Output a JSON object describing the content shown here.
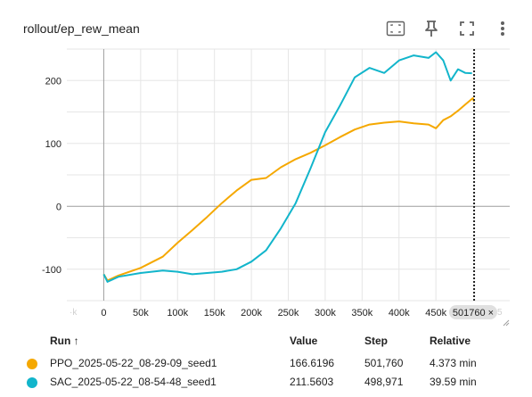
{
  "card": {
    "title": "rollout/ep_rew_mean"
  },
  "toolbar": {
    "icons": [
      "fit-domain-icon",
      "pin-icon",
      "fullscreen-icon",
      "more-vert-icon"
    ]
  },
  "colors": {
    "ppo": "#f5a800",
    "sac": "#12b5cb",
    "grid": "#e6e6e6",
    "axis": "#9e9e9e"
  },
  "hover": {
    "step_label": "501760 ×"
  },
  "chart_data": {
    "type": "line",
    "title": "",
    "xlabel": "",
    "ylabel": "",
    "xlim": [
      -50000,
      550000
    ],
    "ylim": [
      -150,
      250
    ],
    "x_ticks": [
      "50k",
      "100k",
      "150k",
      "200k",
      "250k",
      "300k",
      "350k",
      "400k",
      "450k"
    ],
    "x_tick_values": [
      50000,
      100000,
      150000,
      200000,
      250000,
      300000,
      350000,
      400000,
      450000
    ],
    "y_ticks": [
      "-100",
      "0",
      "100",
      "200"
    ],
    "y_tick_values": [
      -100,
      0,
      100,
      200
    ],
    "hover_step": 501760,
    "series": [
      {
        "name": "PPO_2025-05-22_08-29-09_seed1",
        "color": "#f5a800",
        "x": [
          0,
          5000,
          20000,
          50000,
          80000,
          100000,
          120000,
          140000,
          160000,
          180000,
          200000,
          220000,
          240000,
          260000,
          280000,
          300000,
          320000,
          340000,
          360000,
          380000,
          400000,
          420000,
          440000,
          450000,
          460000,
          470000,
          480000,
          490000,
          500000,
          501760
        ],
        "y": [
          -108,
          -118,
          -110,
          -98,
          -80,
          -58,
          -38,
          -17,
          5,
          25,
          42,
          45,
          62,
          75,
          85,
          97,
          110,
          122,
          130,
          133,
          135,
          132,
          130,
          124,
          137,
          143,
          152,
          162,
          172,
          166.6196
        ]
      },
      {
        "name": "SAC_2025-05-22_08-54-48_seed1",
        "color": "#12b5cb",
        "x": [
          0,
          5000,
          20000,
          50000,
          80000,
          100000,
          120000,
          140000,
          160000,
          180000,
          200000,
          220000,
          240000,
          260000,
          280000,
          300000,
          320000,
          340000,
          360000,
          380000,
          400000,
          420000,
          440000,
          450000,
          460000,
          470000,
          480000,
          490000,
          498971
        ],
        "y": [
          -108,
          -120,
          -112,
          -106,
          -102,
          -104,
          -108,
          -106,
          -104,
          -100,
          -88,
          -70,
          -35,
          5,
          60,
          118,
          160,
          205,
          220,
          212,
          232,
          240,
          236,
          245,
          232,
          200,
          218,
          212,
          211.5603
        ]
      }
    ]
  },
  "table": {
    "headers": {
      "run": "Run ↑",
      "value": "Value",
      "step": "Step",
      "relative": "Relative"
    },
    "rows": [
      {
        "run": "PPO_2025-05-22_08-29-09_seed1",
        "value": "166.6196",
        "step": "501,760",
        "relative": "4.373 min",
        "color": "#f5a800"
      },
      {
        "run": "SAC_2025-05-22_08-54-48_seed1",
        "value": "211.5603",
        "step": "498,971",
        "relative": "39.59 min",
        "color": "#12b5cb"
      }
    ]
  }
}
